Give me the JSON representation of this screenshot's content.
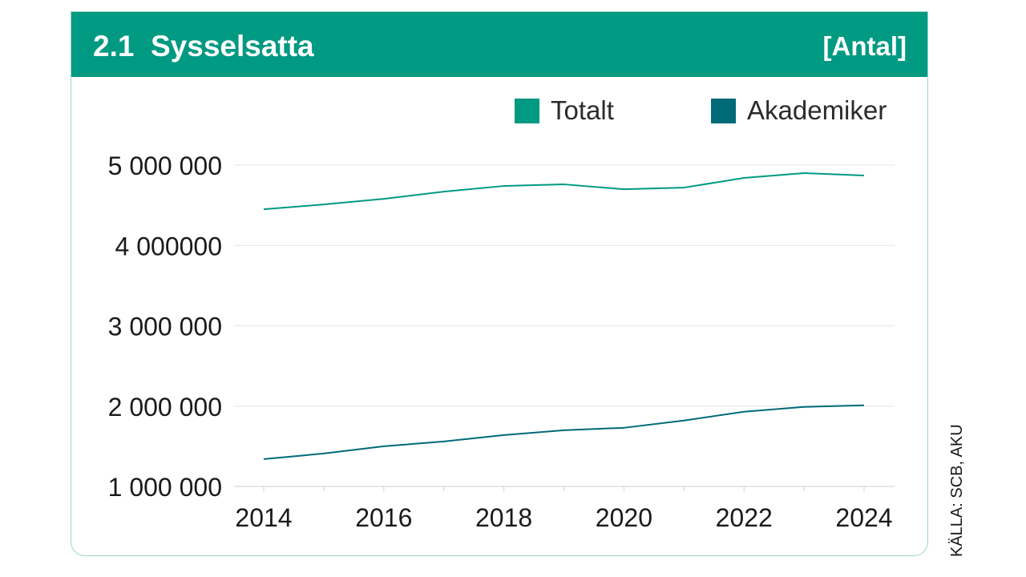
{
  "header": {
    "title": "2.1  Sysselsatta",
    "unit": "[Antal]"
  },
  "source": "KÄLLA: SCB, AKU",
  "colors": {
    "header": "#009982",
    "totalt": "#009982",
    "akademiker": "#006a78",
    "grid": "#e6e6e6"
  },
  "chart_data": {
    "type": "line",
    "x": [
      2014,
      2015,
      2016,
      2017,
      2018,
      2019,
      2020,
      2021,
      2022,
      2023,
      2024
    ],
    "xticks": [
      2014,
      2016,
      2018,
      2020,
      2022,
      2024
    ],
    "xtick_labels": [
      "2014",
      "2016",
      "2018",
      "2020",
      "2022",
      "2024"
    ],
    "yticks": [
      1000000,
      2000000,
      3000000,
      4000000,
      5000000
    ],
    "ytick_labels": [
      "1 000 000",
      "2 000 000",
      "3 000 000",
      "4 000000",
      "5 000 000"
    ],
    "ylim": [
      1000000,
      5000000
    ],
    "xlim": [
      2014,
      2024
    ],
    "legend_position": "top-right",
    "grid": true,
    "series": [
      {
        "name": "Totalt",
        "color": "#009982",
        "values": [
          4450000,
          4510000,
          4580000,
          4670000,
          4740000,
          4760000,
          4700000,
          4720000,
          4840000,
          4900000,
          4870000
        ]
      },
      {
        "name": "Akademiker",
        "color": "#006a78",
        "values": [
          1340000,
          1410000,
          1500000,
          1560000,
          1640000,
          1700000,
          1730000,
          1820000,
          1930000,
          1990000,
          2010000
        ]
      }
    ]
  }
}
